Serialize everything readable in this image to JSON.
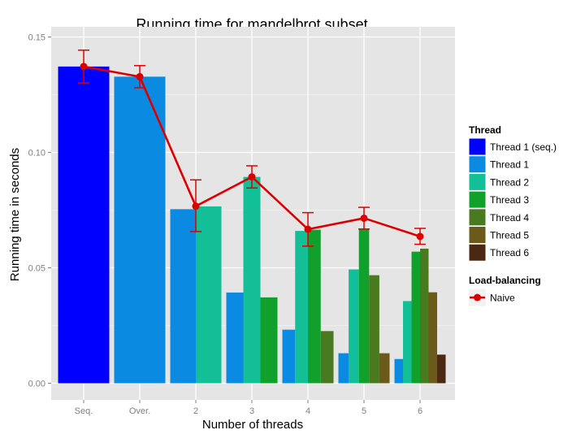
{
  "chart_data": {
    "type": "bar",
    "title": "Running time for mandelbrot subset",
    "xlabel": "Number of threads",
    "ylabel": "Running time in seconds",
    "ylim": [
      0,
      0.15
    ],
    "yticks": [
      "0.00",
      "0.05",
      "0.10",
      "0.15"
    ],
    "ytick_values": [
      0,
      0.05,
      0.1,
      0.15
    ],
    "categories": [
      "Seq.",
      "Over.",
      "2",
      "3",
      "4",
      "5",
      "6"
    ],
    "grid": true,
    "legend_position": "right",
    "thread_legend_title": "Thread",
    "series": [
      {
        "name": "Thread 1 (seq.)",
        "color": "#0000ff",
        "values": [
          0.1372,
          null,
          null,
          null,
          null,
          null,
          null
        ]
      },
      {
        "name": "Thread 1",
        "color": "#0a8ae0",
        "values": [
          null,
          0.1328,
          0.0754,
          0.0393,
          0.0232,
          0.013,
          0.0105
        ]
      },
      {
        "name": "Thread 2",
        "color": "#12bf96",
        "values": [
          null,
          null,
          0.0766,
          0.0894,
          0.066,
          0.0493,
          0.0356
        ]
      },
      {
        "name": "Thread 3",
        "color": "#12a02c",
        "values": [
          null,
          null,
          null,
          0.0372,
          0.0665,
          0.067,
          0.057
        ]
      },
      {
        "name": "Thread 4",
        "color": "#4a7a1f",
        "values": [
          null,
          null,
          null,
          null,
          0.0226,
          0.0468,
          0.0583
        ]
      },
      {
        "name": "Thread 5",
        "color": "#6b5a1a",
        "values": [
          null,
          null,
          null,
          null,
          null,
          0.013,
          0.0394
        ]
      },
      {
        "name": "Thread 6",
        "color": "#4a2812",
        "values": [
          null,
          null,
          null,
          null,
          null,
          null,
          0.0124
        ]
      }
    ],
    "line_legend_title": "Load-balancing",
    "line_series": {
      "name": "Naive",
      "color": "#dd0000",
      "values": [
        0.1372,
        0.1328,
        0.0767,
        0.0894,
        0.0667,
        0.0715,
        0.0636
      ],
      "error_low": [
        0.1301,
        0.128,
        0.0657,
        0.0846,
        0.0594,
        0.0668,
        0.0602
      ],
      "error_high": [
        0.1443,
        0.1376,
        0.0881,
        0.0942,
        0.0739,
        0.0762,
        0.0671
      ]
    }
  }
}
